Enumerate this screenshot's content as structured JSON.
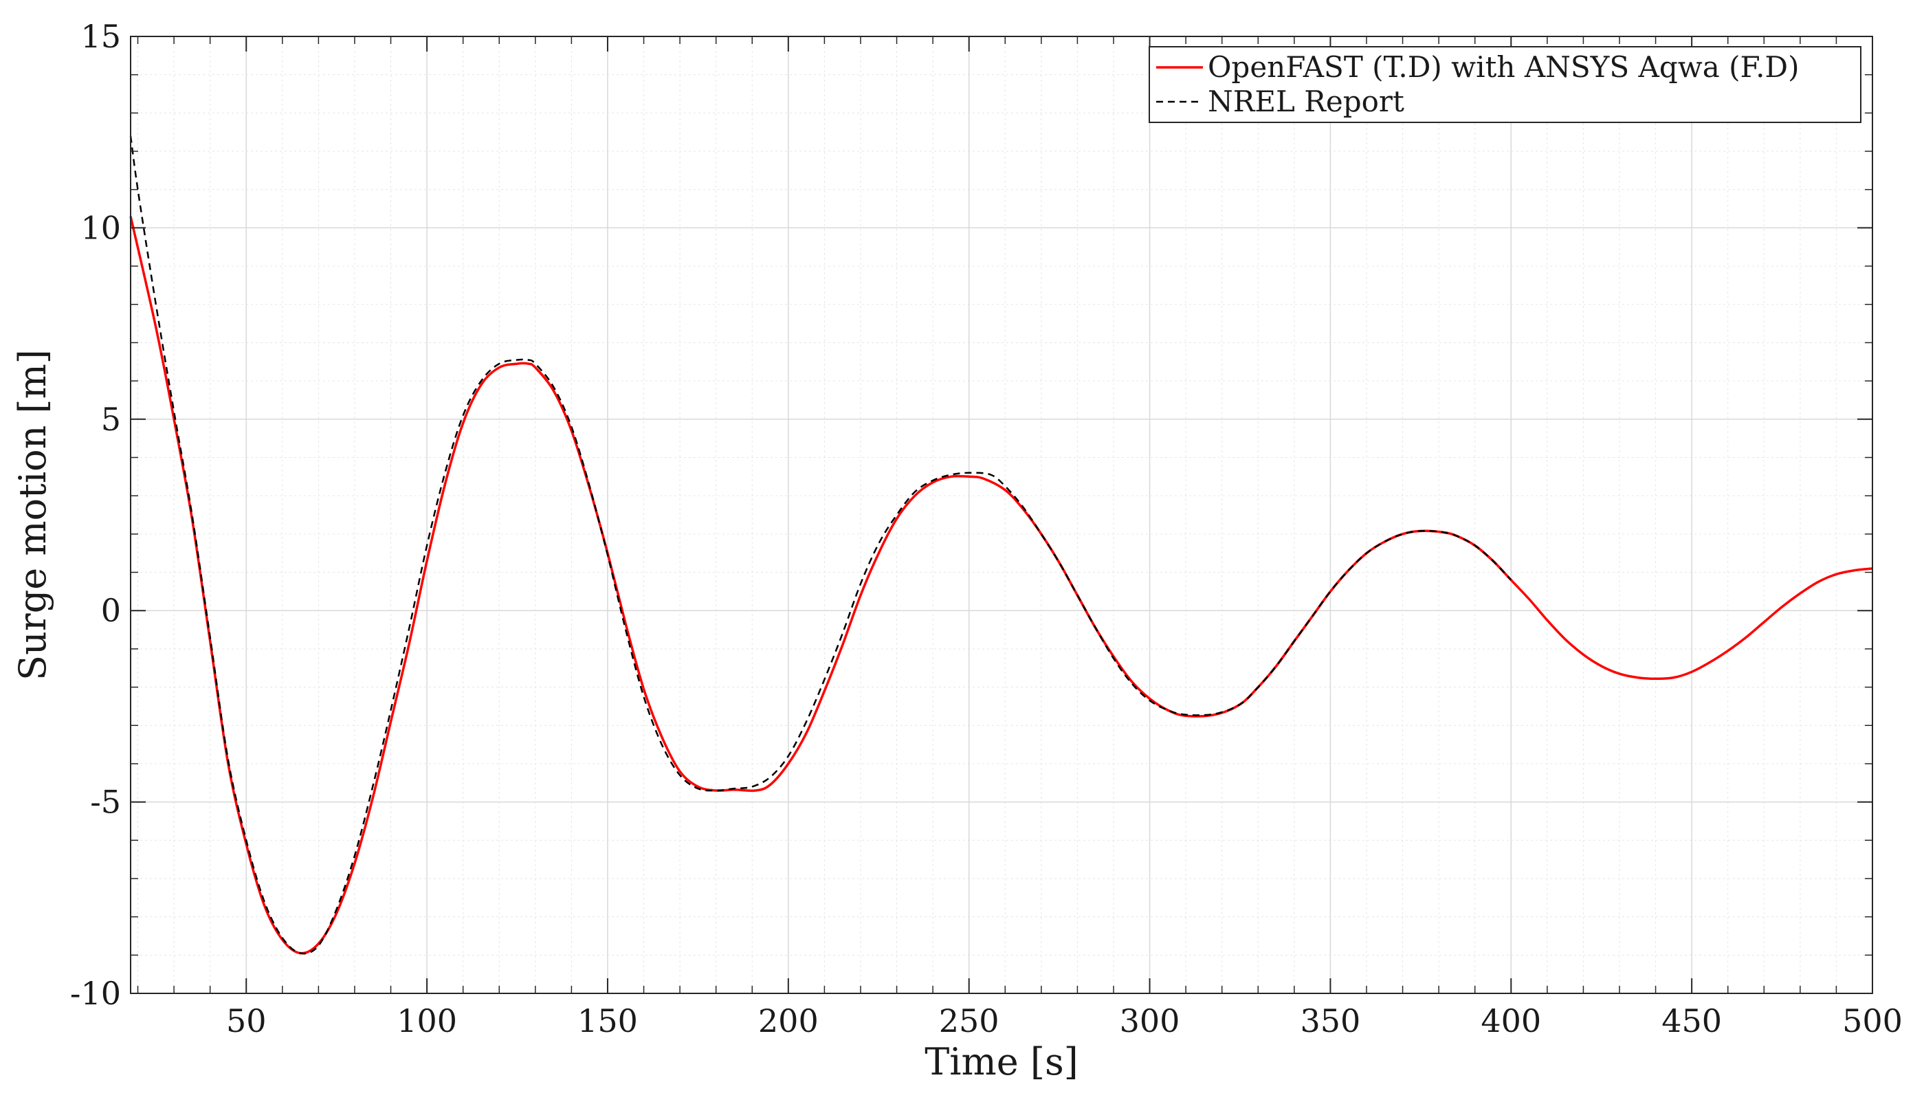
{
  "chart_data": {
    "type": "line",
    "title": "",
    "xlabel": "Time [s]",
    "ylabel": "Surge motion [m]",
    "xlim": [
      18,
      500
    ],
    "ylim": [
      -10,
      15
    ],
    "xticks": [
      50,
      100,
      150,
      200,
      250,
      300,
      350,
      400,
      450,
      500
    ],
    "yticks": [
      -10,
      -5,
      0,
      5,
      10,
      15
    ],
    "xtick_labels": [
      "50",
      "100",
      "150",
      "200",
      "250",
      "300",
      "350",
      "400",
      "450",
      "500"
    ],
    "ytick_labels": [
      "-10",
      "-5",
      "0",
      "5",
      "10",
      "15"
    ],
    "grid": true,
    "minor_grid": true,
    "legend_position": "top-right",
    "series": [
      {
        "name": "OpenFAST (T.D) with ANSYS Aqwa (F.D)",
        "color": "#ff0000",
        "style": "solid",
        "x": [
          18,
          25,
          30,
          35,
          40,
          45,
          50,
          55,
          60,
          65,
          70,
          75,
          80,
          85,
          90,
          95,
          100,
          105,
          110,
          115,
          120,
          125,
          128,
          130,
          135,
          140,
          145,
          150,
          155,
          160,
          165,
          170,
          175,
          180,
          185,
          191,
          195,
          200,
          205,
          210,
          215,
          220,
          225,
          230,
          235,
          240,
          245,
          250,
          254,
          260,
          265,
          270,
          275,
          280,
          285,
          290,
          295,
          300,
          305,
          310,
          318,
          325,
          330,
          335,
          340,
          345,
          350,
          355,
          360,
          365,
          370,
          375,
          381,
          385,
          390,
          395,
          400,
          405,
          410,
          415,
          420,
          425,
          430,
          435,
          440,
          445,
          450,
          455,
          460,
          465,
          470,
          475,
          480,
          485,
          490,
          495,
          500
        ],
        "y": [
          10.3,
          7.4,
          5.0,
          2.4,
          -0.8,
          -4.0,
          -6.1,
          -7.7,
          -8.6,
          -8.95,
          -8.7,
          -7.9,
          -6.6,
          -4.9,
          -2.9,
          -0.9,
          1.3,
          3.3,
          4.9,
          5.9,
          6.35,
          6.45,
          6.45,
          6.35,
          5.75,
          4.7,
          3.2,
          1.5,
          -0.35,
          -2.05,
          -3.3,
          -4.2,
          -4.6,
          -4.7,
          -4.68,
          -4.7,
          -4.55,
          -4.0,
          -3.2,
          -2.1,
          -0.9,
          0.4,
          1.5,
          2.4,
          3.0,
          3.35,
          3.5,
          3.5,
          3.45,
          3.15,
          2.65,
          2.0,
          1.25,
          0.4,
          -0.45,
          -1.2,
          -1.85,
          -2.3,
          -2.6,
          -2.75,
          -2.72,
          -2.45,
          -2.0,
          -1.45,
          -0.8,
          -0.15,
          0.5,
          1.05,
          1.5,
          1.8,
          2.0,
          2.08,
          2.05,
          1.95,
          1.7,
          1.3,
          0.8,
          0.3,
          -0.25,
          -0.75,
          -1.15,
          -1.45,
          -1.65,
          -1.75,
          -1.78,
          -1.75,
          -1.6,
          -1.35,
          -1.05,
          -0.7,
          -0.3,
          0.1,
          0.45,
          0.75,
          0.95,
          1.05,
          1.1
        ]
      },
      {
        "name": "NREL Report",
        "color": "#000000",
        "style": "dashed",
        "x": [
          18,
          20,
          25,
          30,
          35,
          40,
          45,
          50,
          55,
          60,
          65,
          70,
          75,
          80,
          85,
          90,
          95,
          100,
          105,
          110,
          115,
          120,
          125,
          128,
          130,
          135,
          140,
          145,
          150,
          155,
          160,
          165,
          170,
          175,
          180,
          185,
          190,
          195,
          200,
          205,
          210,
          215,
          220,
          225,
          230,
          235,
          240,
          245,
          250,
          256,
          260,
          265,
          270,
          275,
          280,
          285,
          290,
          295,
          300,
          305,
          310,
          318,
          325,
          330,
          335,
          340,
          345,
          350,
          355,
          360,
          365,
          370,
          375,
          381,
          385,
          390,
          395,
          400
        ],
        "y": [
          12.4,
          11.0,
          8.0,
          5.2,
          2.5,
          -0.7,
          -3.9,
          -6.0,
          -7.6,
          -8.55,
          -8.95,
          -8.75,
          -7.8,
          -6.4,
          -4.6,
          -2.6,
          -0.5,
          1.7,
          3.6,
          5.1,
          6.0,
          6.45,
          6.55,
          6.55,
          6.45,
          5.85,
          4.8,
          3.25,
          1.45,
          -0.5,
          -2.25,
          -3.5,
          -4.3,
          -4.65,
          -4.7,
          -4.65,
          -4.6,
          -4.35,
          -3.8,
          -2.9,
          -1.8,
          -0.6,
          0.7,
          1.75,
          2.5,
          3.1,
          3.4,
          3.55,
          3.6,
          3.55,
          3.25,
          2.7,
          2.0,
          1.25,
          0.4,
          -0.45,
          -1.25,
          -1.9,
          -2.35,
          -2.6,
          -2.72,
          -2.7,
          -2.45,
          -2.0,
          -1.45,
          -0.8,
          -0.15,
          0.5,
          1.05,
          1.5,
          1.8,
          2.0,
          2.08,
          2.05,
          1.95,
          1.7,
          1.3,
          0.8
        ]
      }
    ]
  }
}
